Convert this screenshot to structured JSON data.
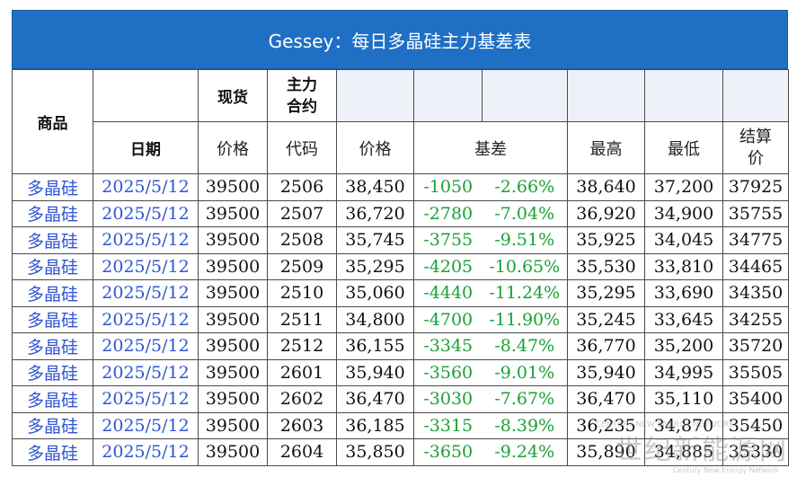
{
  "title": "Gessey：每日多晶硅主力基差表",
  "header": {
    "product": "商品",
    "spot": "现货",
    "main_contract": "主力合约",
    "date": "日期",
    "price": "价格",
    "code": "代码",
    "fut_price": "价格",
    "basis": "基差",
    "high": "最高",
    "low": "最低",
    "settle": "结算价"
  },
  "rows": [
    {
      "product": "多晶硅",
      "date": "2025/5/12",
      "spot": "39500",
      "code": "2506",
      "price": "38,450",
      "basis": "-1050",
      "basis_pct": "-2.66%",
      "high": "38,640",
      "low": "37,200",
      "settle": "37925"
    },
    {
      "product": "多晶硅",
      "date": "2025/5/12",
      "spot": "39500",
      "code": "2507",
      "price": "36,720",
      "basis": "-2780",
      "basis_pct": "-7.04%",
      "high": "36,920",
      "low": "34,900",
      "settle": "35755"
    },
    {
      "product": "多晶硅",
      "date": "2025/5/12",
      "spot": "39500",
      "code": "2508",
      "price": "35,745",
      "basis": "-3755",
      "basis_pct": "-9.51%",
      "high": "35,925",
      "low": "34,045",
      "settle": "34775"
    },
    {
      "product": "多晶硅",
      "date": "2025/5/12",
      "spot": "39500",
      "code": "2509",
      "price": "35,295",
      "basis": "-4205",
      "basis_pct": "-10.65%",
      "high": "35,530",
      "low": "33,810",
      "settle": "34465"
    },
    {
      "product": "多晶硅",
      "date": "2025/5/12",
      "spot": "39500",
      "code": "2510",
      "price": "35,060",
      "basis": "-4440",
      "basis_pct": "-11.24%",
      "high": "35,295",
      "low": "33,690",
      "settle": "34350"
    },
    {
      "product": "多晶硅",
      "date": "2025/5/12",
      "spot": "39500",
      "code": "2511",
      "price": "34,800",
      "basis": "-4700",
      "basis_pct": "-11.90%",
      "high": "35,245",
      "low": "33,645",
      "settle": "34255"
    },
    {
      "product": "多晶硅",
      "date": "2025/5/12",
      "spot": "39500",
      "code": "2512",
      "price": "36,155",
      "basis": "-3345",
      "basis_pct": "-8.47%",
      "high": "36,770",
      "low": "35,200",
      "settle": "35720"
    },
    {
      "product": "多晶硅",
      "date": "2025/5/12",
      "spot": "39500",
      "code": "2601",
      "price": "35,940",
      "basis": "-3560",
      "basis_pct": "-9.01%",
      "high": "35,940",
      "low": "34,995",
      "settle": "35505"
    },
    {
      "product": "多晶硅",
      "date": "2025/5/12",
      "spot": "39500",
      "code": "2602",
      "price": "36,470",
      "basis": "-3030",
      "basis_pct": "-7.67%",
      "high": "36,470",
      "low": "35,110",
      "settle": "35400"
    },
    {
      "product": "多晶硅",
      "date": "2025/5/12",
      "spot": "39500",
      "code": "2603",
      "price": "36,185",
      "basis": "-3315",
      "basis_pct": "-8.39%",
      "high": "36,235",
      "low": "34,870",
      "settle": "35450"
    },
    {
      "product": "多晶硅",
      "date": "2025/5/12",
      "spot": "39500",
      "code": "2604",
      "price": "35,850",
      "basis": "-3650",
      "basis_pct": "-9.24%",
      "high": "35,890",
      "low": "34,885",
      "settle": "35330"
    }
  ],
  "watermark": {
    "main": "世纪新能源网",
    "sub": "Century New Energy Network",
    "top": "CENTURY NEW ENERGY NETWORK"
  },
  "colors": {
    "title_bg": "#1f6fc5",
    "product_text": "#2f55d4",
    "negative_text": "#1aa034"
  }
}
